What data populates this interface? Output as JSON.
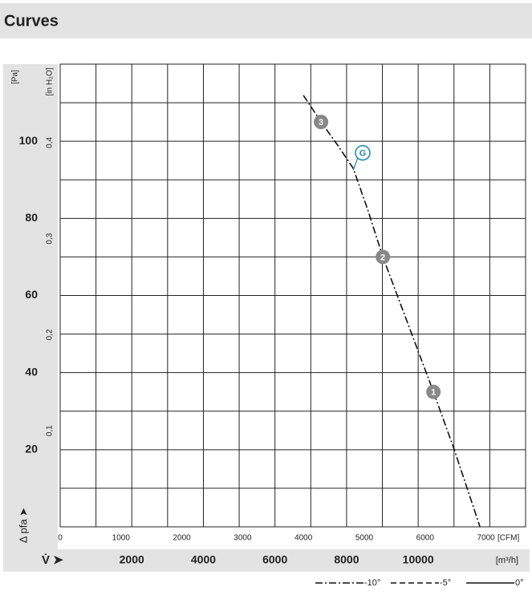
{
  "header": {
    "title": "Curves"
  },
  "chart_data": {
    "type": "line",
    "xlim": [
      0,
      13000
    ],
    "xticks": [
      2000,
      4000,
      6000,
      8000,
      10000
    ],
    "x_unit": "[m³/h]",
    "x_symbol": "V̇ ➤",
    "xgrid": [
      1000,
      2000,
      3000,
      4000,
      5000,
      6000,
      7000,
      8000,
      9000,
      10000,
      11000,
      12000
    ],
    "x2lim": [
      0,
      7652
    ],
    "x2ticks": [
      0,
      1000,
      2000,
      3000,
      4000,
      5000,
      6000,
      7000
    ],
    "x2_unit": "[CFM]",
    "ylim": [
      0,
      120
    ],
    "yticks": [
      20,
      40,
      60,
      80,
      100
    ],
    "y_unit": "[Pa]",
    "y_symbol": "Δ pfa ➤",
    "ygrid": [
      10,
      20,
      30,
      40,
      50,
      60,
      70,
      80,
      90,
      100,
      110
    ],
    "y2lim": [
      0,
      0.4817
    ],
    "y2ticks": [
      {
        "value": 0.1,
        "label": "0,1"
      },
      {
        "value": 0.2,
        "label": "0,2"
      },
      {
        "value": 0.3,
        "label": "0,3"
      },
      {
        "value": 0.4,
        "label": "0,4"
      }
    ],
    "y2_unit": "[in H₂O]",
    "x": [
      6794,
      7287,
      7750,
      8184,
      8600,
      9013,
      9700,
      10426,
      11009,
      11726
    ],
    "series": [
      {
        "name": "-10°",
        "color": "#111111",
        "dash": "9 3 2 3",
        "values": [
          111.9,
          105,
          99,
          93,
          82,
          70,
          53,
          35,
          20,
          0
        ]
      }
    ],
    "legend": [
      {
        "label": "-10°",
        "dash": "9 3 2 3"
      },
      {
        "label": "-5°",
        "dash": "7 4"
      },
      {
        "label": "0°",
        "dash": "none"
      }
    ],
    "points": [
      {
        "label": "3",
        "x": 7287,
        "y": 105,
        "color": "#888888"
      },
      {
        "label": "2",
        "x": 9013,
        "y": 70,
        "color": "#888888"
      },
      {
        "label": "1",
        "x": 10426,
        "y": 35,
        "color": "#888888"
      }
    ],
    "marker_g": {
      "label": "G",
      "x": 8450,
      "y": 97,
      "color": "#1a8aa8",
      "anchor_x": 8184,
      "anchor_y": 92.5
    }
  }
}
